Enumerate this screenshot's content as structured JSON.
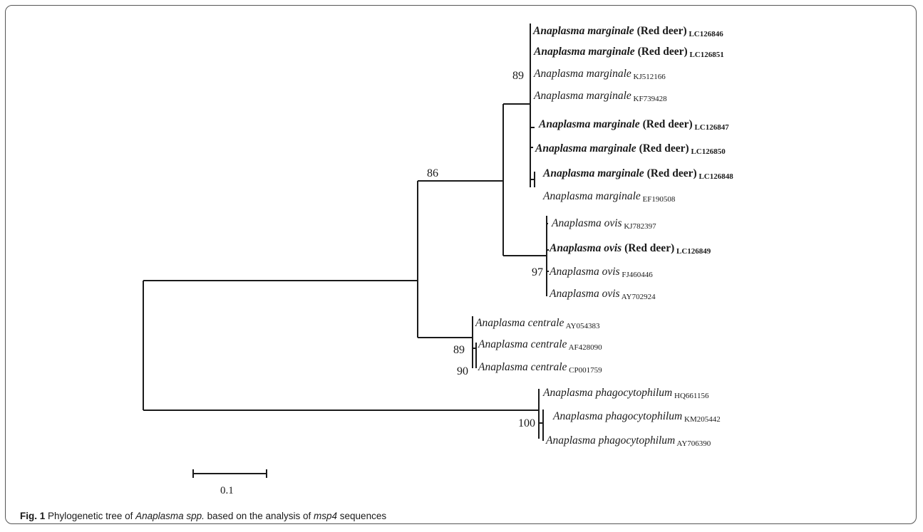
{
  "figure": {
    "label": "Fig. 1",
    "caption_parts": [
      {
        "text": " Phylogenetic tree of ",
        "italic": false
      },
      {
        "text": "Anaplasma spp.",
        "italic": true
      },
      {
        "text": " based on the analysis of ",
        "italic": false
      },
      {
        "text": "msp4",
        "italic": true
      },
      {
        "text": " sequences",
        "italic": false
      }
    ]
  },
  "tree": {
    "scale_bar": {
      "label": "0.1",
      "value": 0.1
    },
    "leaves": [
      {
        "id": "mar1",
        "species": "Anaplasma marginale",
        "host": "(Red deer)",
        "accession": "LC126846",
        "bold": true
      },
      {
        "id": "mar2",
        "species": "Anaplasma marginale",
        "host": "(Red deer)",
        "accession": "LC126851",
        "bold": true
      },
      {
        "id": "mar3",
        "species": "Anaplasma marginale",
        "host": "",
        "accession": "KJ512166",
        "bold": false
      },
      {
        "id": "mar4",
        "species": "Anaplasma marginale",
        "host": "",
        "accession": "KF739428",
        "bold": false
      },
      {
        "id": "mar5",
        "species": "Anaplasma marginale",
        "host": "(Red deer)",
        "accession": "LC126847",
        "bold": true
      },
      {
        "id": "mar6",
        "species": "Anaplasma marginale",
        "host": "(Red deer)",
        "accession": "LC126850",
        "bold": true
      },
      {
        "id": "mar7",
        "species": "Anaplasma marginale",
        "host": "(Red deer)",
        "accession": "LC126848",
        "bold": true
      },
      {
        "id": "mar8",
        "species": "Anaplasma marginale",
        "host": "",
        "accession": "EF190508",
        "bold": false
      },
      {
        "id": "ovi1",
        "species": "Anaplasma ovis",
        "host": "",
        "accession": "KJ782397",
        "bold": false
      },
      {
        "id": "ovi2",
        "species": "Anaplasma ovis",
        "host": "(Red deer)",
        "accession": "LC126849",
        "bold": true
      },
      {
        "id": "ovi3",
        "species": "Anaplasma ovis",
        "host": "",
        "accession": "FJ460446",
        "bold": false
      },
      {
        "id": "ovi4",
        "species": "Anaplasma ovis",
        "host": "",
        "accession": "AY702924",
        "bold": false
      },
      {
        "id": "cen1",
        "species": "Anaplasma centrale",
        "host": "",
        "accession": "AY054383",
        "bold": false
      },
      {
        "id": "cen2",
        "species": "Anaplasma centrale",
        "host": "",
        "accession": "AF428090",
        "bold": false
      },
      {
        "id": "cen3",
        "species": "Anaplasma centrale",
        "host": "",
        "accession": "CP001759",
        "bold": false
      },
      {
        "id": "pha1",
        "species": "Anaplasma phagocytophilum",
        "host": "",
        "accession": "HQ661156",
        "bold": false
      },
      {
        "id": "pha2",
        "species": "Anaplasma phagocytophilum",
        "host": "",
        "accession": "KM205442",
        "bold": false
      },
      {
        "id": "pha3",
        "species": "Anaplasma phagocytophilum",
        "host": "",
        "accession": "AY706390",
        "bold": false
      }
    ],
    "bootstrap": [
      {
        "node": "marginale-clade",
        "value": "89"
      },
      {
        "node": "marginale-ovis",
        "value": "86"
      },
      {
        "node": "ovis-clade",
        "value": "97"
      },
      {
        "node": "centrale-inner",
        "value": "89"
      },
      {
        "node": "centrale-clade",
        "value": "90"
      },
      {
        "node": "phagocytophilum-clade",
        "value": "100"
      }
    ]
  }
}
